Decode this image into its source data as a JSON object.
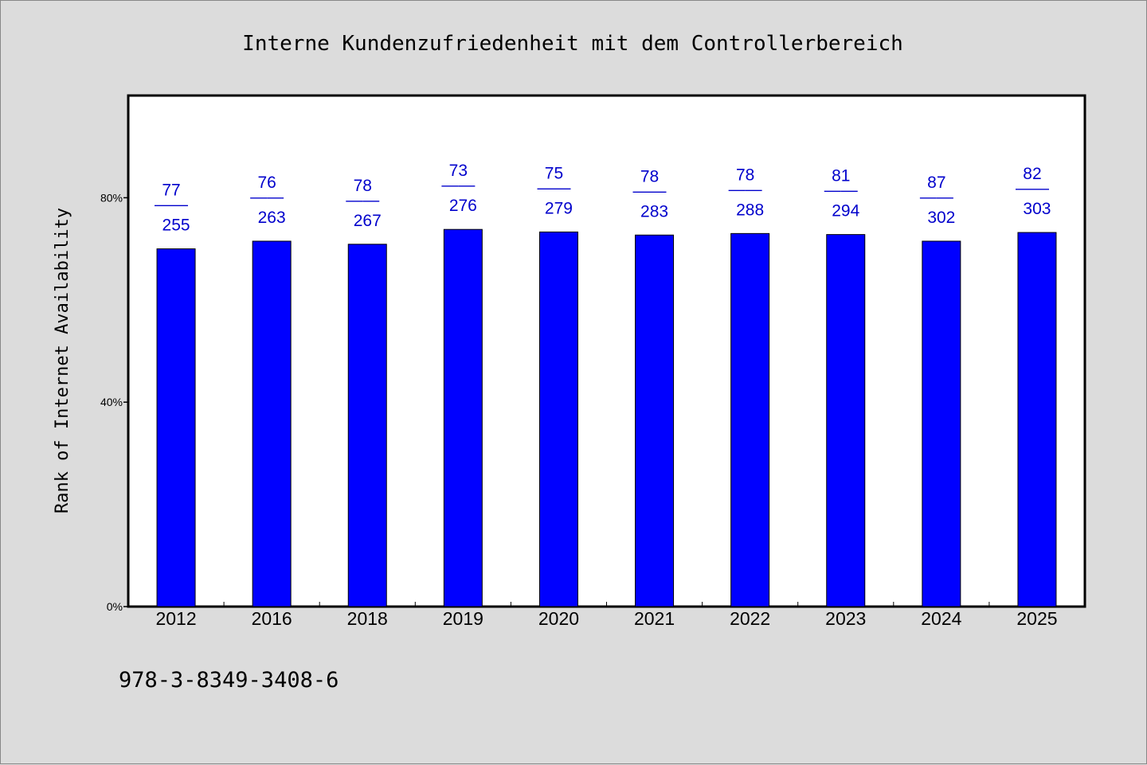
{
  "chart_data": {
    "type": "bar",
    "title": "Interne Kundenzufriedenheit mit dem Controllerbereich",
    "ylabel": "Rank of Internet Availability",
    "xlabel": "",
    "categories": [
      "2012",
      "2016",
      "2018",
      "2019",
      "2020",
      "2021",
      "2022",
      "2023",
      "2024",
      "2025"
    ],
    "values": [
      70.0,
      71.5,
      70.9,
      73.8,
      73.3,
      72.7,
      73.0,
      72.8,
      71.5,
      73.2
    ],
    "data_labels_top": [
      "77",
      "76",
      "78",
      "73",
      "75",
      "78",
      "78",
      "81",
      "87",
      "82"
    ],
    "data_labels_bottom": [
      "255",
      "263",
      "267",
      "276",
      "279",
      "283",
      "288",
      "294",
      "302",
      "303"
    ],
    "data_label_separator": "——",
    "yticks": [
      {
        "value": 0,
        "label": "0%"
      },
      {
        "value": 40,
        "label": "40%"
      },
      {
        "value": 80,
        "label": "80%"
      }
    ],
    "ylim": [
      0,
      100
    ],
    "grid": false,
    "bar_color": "#0000ff",
    "label_color": "#0000cc"
  },
  "footer": {
    "isbn": "978-3-8349-3408-6"
  }
}
